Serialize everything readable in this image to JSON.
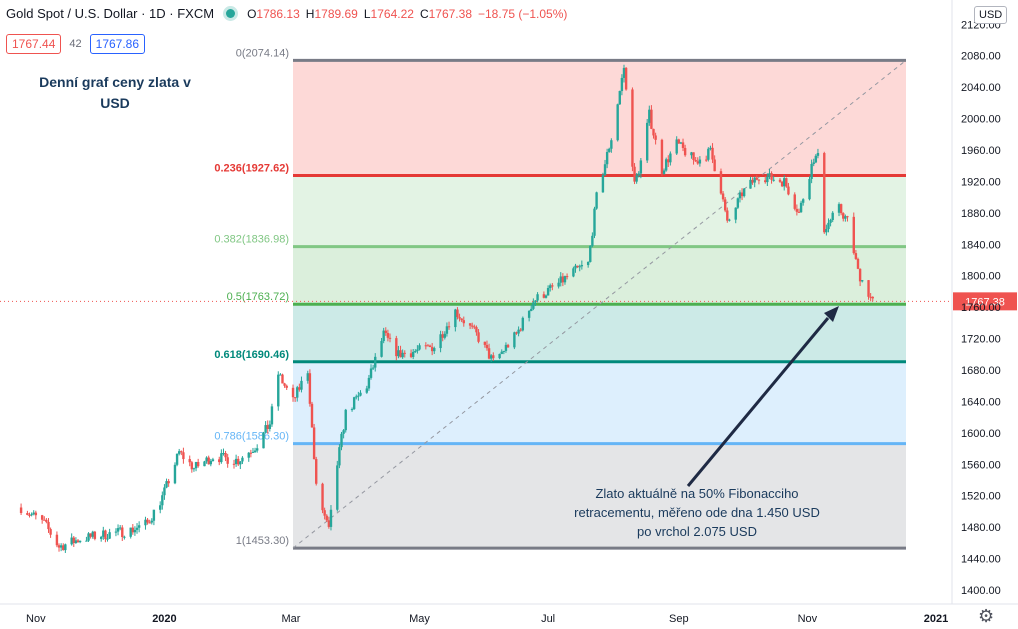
{
  "header": {
    "symbol": "Gold Spot / U.S. Dollar · 1D · FXCM",
    "ohlc": {
      "open": "1786.13",
      "high": "1789.69",
      "low": "1764.22",
      "close": "1767.38",
      "change": "−18.75 (−1.05%)"
    },
    "sell_price": "1767.44",
    "spread": "42",
    "buy_price": "1767.86",
    "currency": "USD"
  },
  "annotations": {
    "title": "Denní graf ceny zlata v USD",
    "arrow_note": "Zlato aktuálně na 50% Fibonacciho retracementu, měřeno ode dna 1.450 USD po vrchol 2.075 USD"
  },
  "colors": {
    "up": "#26a69a",
    "down": "#ef5350",
    "fib_0": "#787b86",
    "fib_236": "#e53935",
    "fib_382": "#81c784",
    "fib_5": "#4caf50",
    "fib_618": "#00897b",
    "fib_786": "#64b5f6",
    "fib_1": "#787b86"
  },
  "chart_data": {
    "type": "candlestick",
    "title": "Denní graf ceny zlata v USD",
    "ylabel": "USD",
    "ylim": [
      1400,
      2100
    ],
    "y_ticks": [
      "2120.00",
      "2080.00",
      "2040.00",
      "2000.00",
      "1960.00",
      "1920.00",
      "1880.00",
      "1840.00",
      "1800.00",
      "1760.00",
      "1720.00",
      "1680.00",
      "1640.00",
      "1600.00",
      "1560.00",
      "1520.00",
      "1480.00",
      "1440.00",
      "1400.00"
    ],
    "x_tick_labels": [
      "Nov",
      "2020",
      "Mar",
      "May",
      "Jul",
      "Sep",
      "Nov",
      "2021"
    ],
    "last_price": "1767.38",
    "fibonacci": [
      {
        "ratio": 0,
        "price": 2074.14,
        "label": "0(2074.14)"
      },
      {
        "ratio": 0.236,
        "price": 1927.62,
        "label": "0.236(1927.62)"
      },
      {
        "ratio": 0.382,
        "price": 1836.98,
        "label": "0.382(1836.98)"
      },
      {
        "ratio": 0.5,
        "price": 1763.72,
        "label": "0.5(1763.72)"
      },
      {
        "ratio": 0.618,
        "price": 1690.46,
        "label": "0.618(1690.46)"
      },
      {
        "ratio": 0.786,
        "price": 1586.3,
        "label": "0.786(1586.30)"
      },
      {
        "ratio": 1,
        "price": 1453.3,
        "label": "1(1453.30)"
      }
    ],
    "close_path": [
      [
        "2019-10-25",
        1505
      ],
      [
        "2019-11-05",
        1485
      ],
      [
        "2019-11-12",
        1455
      ],
      [
        "2019-11-22",
        1465
      ],
      [
        "2019-12-02",
        1470
      ],
      [
        "2019-12-16",
        1476
      ],
      [
        "2019-12-24",
        1485
      ],
      [
        "2019-12-31",
        1518
      ],
      [
        "2020-01-08",
        1575
      ],
      [
        "2020-01-15",
        1555
      ],
      [
        "2020-01-24",
        1570
      ],
      [
        "2020-02-05",
        1565
      ],
      [
        "2020-02-14",
        1585
      ],
      [
        "2020-02-20",
        1612
      ],
      [
        "2020-02-24",
        1675
      ],
      [
        "2020-03-02",
        1640
      ],
      [
        "2020-03-09",
        1680
      ],
      [
        "2020-03-13",
        1530
      ],
      [
        "2020-03-19",
        1475
      ],
      [
        "2020-03-23",
        1560
      ],
      [
        "2020-03-27",
        1625
      ],
      [
        "2020-04-06",
        1660
      ],
      [
        "2020-04-14",
        1725
      ],
      [
        "2020-04-21",
        1700
      ],
      [
        "2020-05-01",
        1705
      ],
      [
        "2020-05-08",
        1710
      ],
      [
        "2020-05-18",
        1755
      ],
      [
        "2020-05-28",
        1725
      ],
      [
        "2020-06-05",
        1690
      ],
      [
        "2020-06-16",
        1725
      ],
      [
        "2020-06-24",
        1768
      ],
      [
        "2020-07-06",
        1790
      ],
      [
        "2020-07-13",
        1805
      ],
      [
        "2020-07-20",
        1815
      ],
      [
        "2020-07-24",
        1900
      ],
      [
        "2020-07-31",
        1975
      ],
      [
        "2020-08-06",
        2065
      ],
      [
        "2020-08-11",
        1915
      ],
      [
        "2020-08-14",
        1945
      ],
      [
        "2020-08-18",
        2005
      ],
      [
        "2020-08-24",
        1935
      ],
      [
        "2020-08-31",
        1968
      ],
      [
        "2020-09-09",
        1945
      ],
      [
        "2020-09-16",
        1958
      ],
      [
        "2020-09-21",
        1910
      ],
      [
        "2020-09-24",
        1865
      ],
      [
        "2020-10-01",
        1905
      ],
      [
        "2020-10-09",
        1928
      ],
      [
        "2020-10-21",
        1920
      ],
      [
        "2020-10-28",
        1880
      ],
      [
        "2020-11-04",
        1950
      ],
      [
        "2020-11-06",
        1950
      ],
      [
        "2020-11-09",
        1860
      ],
      [
        "2020-11-16",
        1885
      ],
      [
        "2020-11-20",
        1870
      ],
      [
        "2020-11-25",
        1805
      ],
      [
        "2020-11-30",
        1778
      ],
      [
        "2020-12-02",
        1767.38
      ]
    ]
  }
}
